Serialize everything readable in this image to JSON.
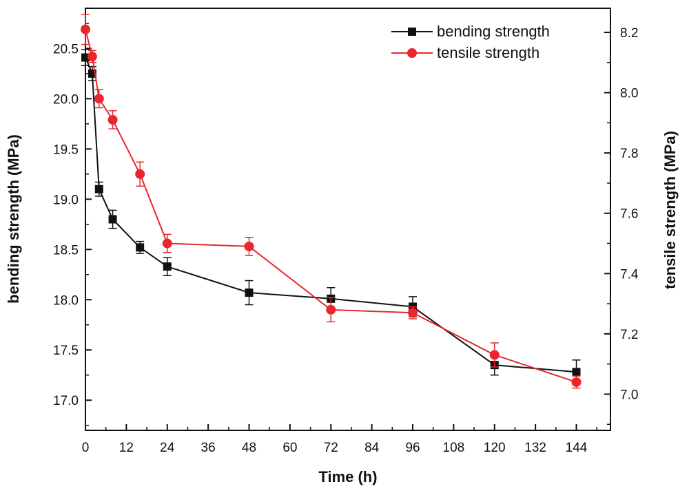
{
  "chart_data": {
    "type": "line",
    "xlabel": "Time (h)",
    "ylabel": "bending strength (MPa)",
    "y2label": "tensile strength (MPa)",
    "xlim": [
      0,
      154
    ],
    "ylim": [
      16.7,
      20.9
    ],
    "y2lim": [
      6.88,
      8.28
    ],
    "xticks": [
      "0",
      "12",
      "24",
      "36",
      "48",
      "60",
      "72",
      "84",
      "96",
      "108",
      "120",
      "132",
      "144"
    ],
    "yticks": [
      "17.0",
      "17.5",
      "18.0",
      "18.5",
      "19.0",
      "19.5",
      "20.0",
      "20.5"
    ],
    "y2ticks": [
      "7.0",
      "7.2",
      "7.4",
      "7.6",
      "7.8",
      "8.0",
      "8.2"
    ],
    "legend_position": "top-right",
    "series": [
      {
        "name": "bending strength",
        "axis": "left",
        "color": "#111111",
        "marker": "square",
        "x": [
          0,
          2,
          4,
          8,
          16,
          24,
          48,
          72,
          96,
          120,
          144
        ],
        "y": [
          20.41,
          20.25,
          19.1,
          18.8,
          18.52,
          18.33,
          18.07,
          18.01,
          17.93,
          17.35,
          17.28
        ],
        "err": [
          0.08,
          0.07,
          0.07,
          0.09,
          0.06,
          0.09,
          0.12,
          0.11,
          0.1,
          0.1,
          0.12
        ]
      },
      {
        "name": "tensile strength",
        "axis": "right",
        "color": "#e8262b",
        "marker": "circle",
        "x": [
          0,
          2,
          4,
          8,
          16,
          24,
          48,
          72,
          96,
          120,
          144
        ],
        "y": [
          8.21,
          8.12,
          7.98,
          7.91,
          7.73,
          7.5,
          7.49,
          7.28,
          7.27,
          7.13,
          7.04
        ],
        "err": [
          0.05,
          0.02,
          0.03,
          0.03,
          0.04,
          0.03,
          0.03,
          0.04,
          0.02,
          0.04,
          0.02
        ]
      }
    ]
  }
}
